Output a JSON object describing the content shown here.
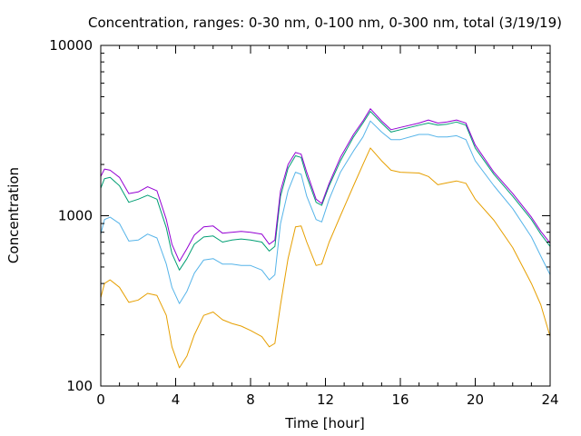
{
  "chart_data": {
    "type": "line",
    "title": "Concentration, ranges: 0-30 nm, 0-100 nm, 0-300 nm, total (3/19/19)",
    "xlabel": "Time [hour]",
    "ylabel": "Concentration",
    "xlim": [
      0,
      24
    ],
    "ylim": [
      100,
      10000
    ],
    "yscale": "log",
    "grid": false,
    "legend": "none",
    "xticks": [
      0,
      4,
      8,
      12,
      16,
      20,
      24
    ],
    "xtick_labels": [
      "0",
      "4",
      "8",
      "12",
      "16",
      "20",
      "24"
    ],
    "xminor_step": 1,
    "yticks": [
      100,
      1000,
      10000
    ],
    "ytick_labels": [
      "100",
      "1000",
      "10000"
    ],
    "series": [
      {
        "color": "#e69f00",
        "points": [
          [
            0,
            330
          ],
          [
            0.2,
            400
          ],
          [
            0.5,
            420
          ],
          [
            1,
            380
          ],
          [
            1.5,
            310
          ],
          [
            2,
            320
          ],
          [
            2.5,
            350
          ],
          [
            3,
            340
          ],
          [
            3.5,
            260
          ],
          [
            3.8,
            170
          ],
          [
            4.2,
            128
          ],
          [
            4.6,
            150
          ],
          [
            5,
            200
          ],
          [
            5.5,
            260
          ],
          [
            6,
            272
          ],
          [
            6.5,
            245
          ],
          [
            7,
            233
          ],
          [
            7.5,
            225
          ],
          [
            8,
            212
          ],
          [
            8.6,
            195
          ],
          [
            9,
            170
          ],
          [
            9.3,
            178
          ],
          [
            9.6,
            300
          ],
          [
            10,
            560
          ],
          [
            10.4,
            860
          ],
          [
            10.7,
            870
          ],
          [
            11,
            700
          ],
          [
            11.5,
            510
          ],
          [
            11.8,
            520
          ],
          [
            12.2,
            700
          ],
          [
            12.8,
            1000
          ],
          [
            13.5,
            1500
          ],
          [
            14,
            2000
          ],
          [
            14.4,
            2500
          ],
          [
            15,
            2100
          ],
          [
            15.5,
            1850
          ],
          [
            16,
            1800
          ],
          [
            17,
            1780
          ],
          [
            17.5,
            1700
          ],
          [
            18,
            1520
          ],
          [
            18.5,
            1560
          ],
          [
            19,
            1600
          ],
          [
            19.5,
            1550
          ],
          [
            20,
            1250
          ],
          [
            21,
            940
          ],
          [
            22,
            650
          ],
          [
            23,
            400
          ],
          [
            23.5,
            300
          ],
          [
            24,
            195
          ]
        ]
      },
      {
        "color": "#56b4e9",
        "points": [
          [
            0,
            780
          ],
          [
            0.2,
            950
          ],
          [
            0.5,
            980
          ],
          [
            1,
            900
          ],
          [
            1.5,
            710
          ],
          [
            2,
            720
          ],
          [
            2.5,
            780
          ],
          [
            3,
            740
          ],
          [
            3.5,
            520
          ],
          [
            3.8,
            380
          ],
          [
            4.2,
            305
          ],
          [
            4.6,
            360
          ],
          [
            5,
            460
          ],
          [
            5.5,
            550
          ],
          [
            6,
            560
          ],
          [
            6.5,
            520
          ],
          [
            7,
            520
          ],
          [
            7.5,
            510
          ],
          [
            8,
            510
          ],
          [
            8.6,
            480
          ],
          [
            9,
            420
          ],
          [
            9.3,
            450
          ],
          [
            9.6,
            900
          ],
          [
            10,
            1400
          ],
          [
            10.4,
            1800
          ],
          [
            10.7,
            1750
          ],
          [
            11,
            1300
          ],
          [
            11.5,
            950
          ],
          [
            11.8,
            920
          ],
          [
            12.2,
            1250
          ],
          [
            12.8,
            1800
          ],
          [
            13.5,
            2400
          ],
          [
            14,
            2900
          ],
          [
            14.4,
            3600
          ],
          [
            15,
            3100
          ],
          [
            15.5,
            2800
          ],
          [
            16,
            2800
          ],
          [
            17,
            3000
          ],
          [
            17.5,
            3000
          ],
          [
            18,
            2900
          ],
          [
            18.5,
            2900
          ],
          [
            19,
            2950
          ],
          [
            19.5,
            2800
          ],
          [
            20,
            2100
          ],
          [
            21,
            1500
          ],
          [
            22,
            1100
          ],
          [
            23,
            750
          ],
          [
            23.5,
            580
          ],
          [
            24,
            450
          ]
        ]
      },
      {
        "color": "#009e73",
        "points": [
          [
            0,
            1450
          ],
          [
            0.2,
            1650
          ],
          [
            0.5,
            1680
          ],
          [
            1,
            1500
          ],
          [
            1.5,
            1200
          ],
          [
            2,
            1250
          ],
          [
            2.5,
            1320
          ],
          [
            3,
            1250
          ],
          [
            3.5,
            850
          ],
          [
            3.8,
            600
          ],
          [
            4.2,
            480
          ],
          [
            4.6,
            560
          ],
          [
            5,
            680
          ],
          [
            5.5,
            750
          ],
          [
            6,
            760
          ],
          [
            6.5,
            700
          ],
          [
            7,
            720
          ],
          [
            7.5,
            730
          ],
          [
            8,
            720
          ],
          [
            8.6,
            700
          ],
          [
            9,
            620
          ],
          [
            9.3,
            660
          ],
          [
            9.6,
            1300
          ],
          [
            10,
            1900
          ],
          [
            10.4,
            2250
          ],
          [
            10.7,
            2200
          ],
          [
            11,
            1700
          ],
          [
            11.5,
            1200
          ],
          [
            11.8,
            1150
          ],
          [
            12.2,
            1500
          ],
          [
            12.8,
            2100
          ],
          [
            13.5,
            2900
          ],
          [
            14,
            3500
          ],
          [
            14.4,
            4100
          ],
          [
            15,
            3500
          ],
          [
            15.5,
            3100
          ],
          [
            16,
            3200
          ],
          [
            17,
            3400
          ],
          [
            17.5,
            3500
          ],
          [
            18,
            3400
          ],
          [
            18.5,
            3450
          ],
          [
            19,
            3550
          ],
          [
            19.5,
            3400
          ],
          [
            20,
            2500
          ],
          [
            21,
            1750
          ],
          [
            22,
            1300
          ],
          [
            23,
            950
          ],
          [
            23.5,
            780
          ],
          [
            24,
            660
          ]
        ]
      },
      {
        "color": "#9400d3",
        "points": [
          [
            0,
            1700
          ],
          [
            0.2,
            1880
          ],
          [
            0.5,
            1850
          ],
          [
            1,
            1680
          ],
          [
            1.5,
            1350
          ],
          [
            2,
            1380
          ],
          [
            2.5,
            1480
          ],
          [
            3,
            1400
          ],
          [
            3.5,
            950
          ],
          [
            3.8,
            680
          ],
          [
            4.2,
            540
          ],
          [
            4.6,
            640
          ],
          [
            5,
            770
          ],
          [
            5.5,
            860
          ],
          [
            6,
            870
          ],
          [
            6.5,
            790
          ],
          [
            7,
            800
          ],
          [
            7.5,
            810
          ],
          [
            8,
            800
          ],
          [
            8.6,
            780
          ],
          [
            9,
            680
          ],
          [
            9.3,
            720
          ],
          [
            9.6,
            1400
          ],
          [
            10,
            2000
          ],
          [
            10.4,
            2350
          ],
          [
            10.7,
            2300
          ],
          [
            11,
            1800
          ],
          [
            11.5,
            1250
          ],
          [
            11.8,
            1180
          ],
          [
            12.2,
            1550
          ],
          [
            12.8,
            2200
          ],
          [
            13.5,
            3000
          ],
          [
            14,
            3600
          ],
          [
            14.4,
            4250
          ],
          [
            15,
            3600
          ],
          [
            15.5,
            3200
          ],
          [
            16,
            3300
          ],
          [
            17,
            3500
          ],
          [
            17.5,
            3650
          ],
          [
            18,
            3500
          ],
          [
            18.5,
            3550
          ],
          [
            19,
            3650
          ],
          [
            19.5,
            3500
          ],
          [
            20,
            2600
          ],
          [
            21,
            1800
          ],
          [
            22,
            1350
          ],
          [
            23,
            980
          ],
          [
            23.5,
            810
          ],
          [
            24,
            690
          ]
        ]
      }
    ]
  }
}
